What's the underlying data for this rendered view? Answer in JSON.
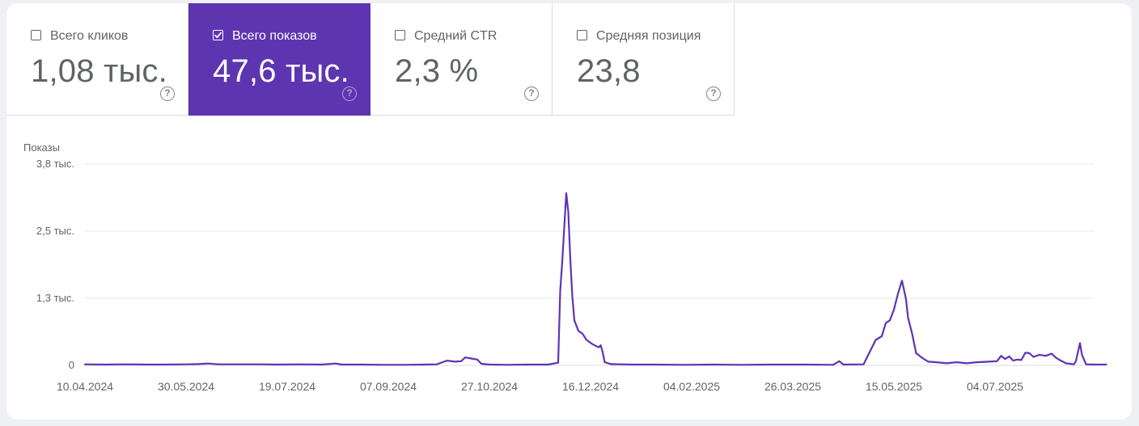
{
  "metrics": [
    {
      "label": "Всего кликов",
      "value": "1,08 тыс.",
      "checked": false
    },
    {
      "label": "Всего показов",
      "value": "47,6 тыс.",
      "checked": true
    },
    {
      "label": "Средний CTR",
      "value": "2,3 %",
      "checked": false
    },
    {
      "label": "Средняя позиция",
      "value": "23,8",
      "checked": false
    }
  ],
  "help_glyph": "?",
  "colors": {
    "accent": "#5e35b1",
    "line": "#5e35b1",
    "grid": "#e8eaed",
    "text": "#5f6368"
  },
  "chart_data": {
    "type": "line",
    "ylabel": "Показы",
    "ylim": [
      0,
      3800
    ],
    "y_ticks": [
      {
        "value": 0,
        "label": "0"
      },
      {
        "value": 1266,
        "label": "1,3 тыс."
      },
      {
        "value": 2533,
        "label": "2,5 тыс."
      },
      {
        "value": 3800,
        "label": "3,8 тыс."
      }
    ],
    "x_range": [
      "2024-04-10",
      "2025-08-28"
    ],
    "x_ticks": [
      "10.04.2024",
      "30.05.2024",
      "19.07.2024",
      "07.09.2024",
      "27.10.2024",
      "16.12.2024",
      "04.02.2025",
      "26.03.2025",
      "15.05.2025",
      "04.07.2025"
    ],
    "grid": true,
    "series": [
      {
        "values": [
          [
            "2024-04-10",
            20
          ],
          [
            "2024-04-20",
            15
          ],
          [
            "2024-04-30",
            20
          ],
          [
            "2024-05-10",
            15
          ],
          [
            "2024-05-20",
            15
          ],
          [
            "2024-05-30",
            20
          ],
          [
            "2024-06-05",
            25
          ],
          [
            "2024-06-10",
            35
          ],
          [
            "2024-06-15",
            20
          ],
          [
            "2024-06-25",
            20
          ],
          [
            "2024-07-05",
            20
          ],
          [
            "2024-07-15",
            15
          ],
          [
            "2024-07-25",
            20
          ],
          [
            "2024-08-05",
            15
          ],
          [
            "2024-08-12",
            35
          ],
          [
            "2024-08-15",
            15
          ],
          [
            "2024-08-25",
            15
          ],
          [
            "2024-09-05",
            10
          ],
          [
            "2024-09-15",
            10
          ],
          [
            "2024-09-25",
            15
          ],
          [
            "2024-10-01",
            20
          ],
          [
            "2024-10-06",
            90
          ],
          [
            "2024-10-10",
            70
          ],
          [
            "2024-10-13",
            80
          ],
          [
            "2024-10-15",
            150
          ],
          [
            "2024-10-18",
            130
          ],
          [
            "2024-10-21",
            110
          ],
          [
            "2024-10-23",
            30
          ],
          [
            "2024-10-27",
            15
          ],
          [
            "2024-11-05",
            10
          ],
          [
            "2024-11-15",
            15
          ],
          [
            "2024-11-25",
            15
          ],
          [
            "2024-11-30",
            50
          ],
          [
            "2024-12-01",
            1400
          ],
          [
            "2024-12-02",
            1950
          ],
          [
            "2024-12-04",
            3250
          ],
          [
            "2024-12-05",
            2900
          ],
          [
            "2024-12-06",
            2000
          ],
          [
            "2024-12-07",
            1300
          ],
          [
            "2024-12-08",
            850
          ],
          [
            "2024-12-10",
            650
          ],
          [
            "2024-12-12",
            600
          ],
          [
            "2024-12-14",
            480
          ],
          [
            "2024-12-17",
            400
          ],
          [
            "2024-12-20",
            340
          ],
          [
            "2024-12-21",
            380
          ],
          [
            "2024-12-22",
            250
          ],
          [
            "2024-12-23",
            60
          ],
          [
            "2024-12-26",
            25
          ],
          [
            "2025-01-05",
            15
          ],
          [
            "2025-01-15",
            15
          ],
          [
            "2025-02-01",
            10
          ],
          [
            "2025-02-15",
            15
          ],
          [
            "2025-03-01",
            10
          ],
          [
            "2025-03-15",
            15
          ],
          [
            "2025-04-01",
            15
          ],
          [
            "2025-04-15",
            10
          ],
          [
            "2025-04-18",
            80
          ],
          [
            "2025-04-20",
            15
          ],
          [
            "2025-04-30",
            20
          ],
          [
            "2025-05-03",
            250
          ],
          [
            "2025-05-06",
            480
          ],
          [
            "2025-05-09",
            550
          ],
          [
            "2025-05-11",
            800
          ],
          [
            "2025-05-13",
            850
          ],
          [
            "2025-05-15",
            1050
          ],
          [
            "2025-05-17",
            1350
          ],
          [
            "2025-05-19",
            1600
          ],
          [
            "2025-05-21",
            1250
          ],
          [
            "2025-05-22",
            900
          ],
          [
            "2025-05-24",
            600
          ],
          [
            "2025-05-26",
            230
          ],
          [
            "2025-05-29",
            140
          ],
          [
            "2025-06-01",
            70
          ],
          [
            "2025-06-05",
            60
          ],
          [
            "2025-06-10",
            40
          ],
          [
            "2025-06-15",
            60
          ],
          [
            "2025-06-20",
            40
          ],
          [
            "2025-06-25",
            60
          ],
          [
            "2025-07-01",
            70
          ],
          [
            "2025-07-05",
            80
          ],
          [
            "2025-07-07",
            180
          ],
          [
            "2025-07-09",
            120
          ],
          [
            "2025-07-11",
            170
          ],
          [
            "2025-07-13",
            90
          ],
          [
            "2025-07-15",
            110
          ],
          [
            "2025-07-17",
            100
          ],
          [
            "2025-07-19",
            240
          ],
          [
            "2025-07-21",
            230
          ],
          [
            "2025-07-23",
            160
          ],
          [
            "2025-07-26",
            200
          ],
          [
            "2025-07-29",
            180
          ],
          [
            "2025-08-01",
            220
          ],
          [
            "2025-08-03",
            150
          ],
          [
            "2025-08-05",
            100
          ],
          [
            "2025-08-08",
            40
          ],
          [
            "2025-08-12",
            20
          ],
          [
            "2025-08-13",
            80
          ],
          [
            "2025-08-15",
            420
          ],
          [
            "2025-08-16",
            200
          ],
          [
            "2025-08-18",
            20
          ],
          [
            "2025-08-22",
            15
          ],
          [
            "2025-08-28",
            15
          ]
        ]
      }
    ]
  }
}
